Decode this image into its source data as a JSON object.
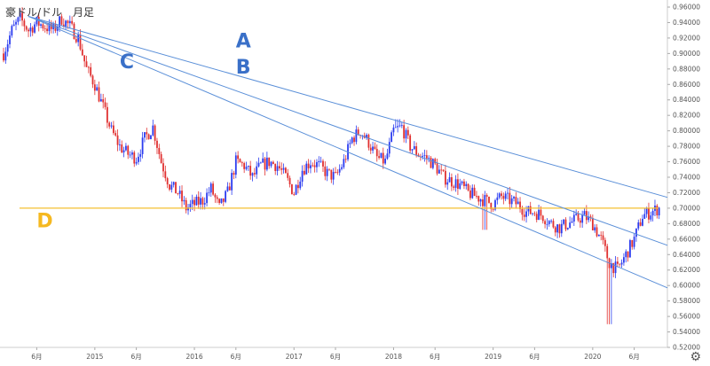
{
  "title": "豪ドル/ドル　月足",
  "colors": {
    "up": "#2b3cf0",
    "down": "#e03030",
    "trend": "#5a8fd8",
    "level": "#f4c030",
    "label_blue": "#3a70c8",
    "label_gold": "#f5b820",
    "grid": "#eeeeee"
  },
  "chart_data": {
    "type": "candlestick",
    "title": "豪ドル/ドル　月足",
    "ylim": [
      0.52,
      0.96
    ],
    "yticks": [
      "0.96000",
      "0.94000",
      "0.92000",
      "0.90000",
      "0.88000",
      "0.86000",
      "0.84000",
      "0.82000",
      "0.80000",
      "0.78000",
      "0.76000",
      "0.74000",
      "0.72000",
      "0.70000",
      "0.68000",
      "0.66000",
      "0.64000",
      "0.62000",
      "0.60000",
      "0.58000",
      "0.56000",
      "0.54000",
      "0.52000"
    ],
    "xticks": [
      {
        "label": "6月",
        "date": "2014-06"
      },
      {
        "label": "2015",
        "date": "2015-01"
      },
      {
        "label": "6月",
        "date": "2015-06"
      },
      {
        "label": "2016",
        "date": "2016-01"
      },
      {
        "label": "6月",
        "date": "2016-06"
      },
      {
        "label": "2017",
        "date": "2017-01"
      },
      {
        "label": "6月",
        "date": "2017-06"
      },
      {
        "label": "2018",
        "date": "2018-01"
      },
      {
        "label": "6月",
        "date": "2018-06"
      },
      {
        "label": "2019",
        "date": "2019-01"
      },
      {
        "label": "6月",
        "date": "2019-06"
      },
      {
        "label": "2020",
        "date": "2020-01"
      },
      {
        "label": "6月",
        "date": "2020-06"
      }
    ],
    "xrange": [
      "2014-02",
      "2020-10"
    ],
    "price_path": [
      [
        "2014-02",
        0.9
      ],
      [
        "2014-03",
        0.93
      ],
      [
        "2014-04",
        0.945
      ],
      [
        "2014-05",
        0.93
      ],
      [
        "2014-06",
        0.94
      ],
      [
        "2014-07",
        0.935
      ],
      [
        "2014-08",
        0.93
      ],
      [
        "2014-09",
        0.945
      ],
      [
        "2014-10",
        0.935
      ],
      [
        "2014-11",
        0.92
      ],
      [
        "2014-12",
        0.88
      ],
      [
        "2015-01",
        0.86
      ],
      [
        "2015-02",
        0.83
      ],
      [
        "2015-03",
        0.8
      ],
      [
        "2015-04",
        0.78
      ],
      [
        "2015-05",
        0.77
      ],
      [
        "2015-06",
        0.765
      ],
      [
        "2015-07",
        0.79
      ],
      [
        "2015-08",
        0.805
      ],
      [
        "2015-09",
        0.76
      ],
      [
        "2015-10",
        0.73
      ],
      [
        "2015-11",
        0.72
      ],
      [
        "2015-12",
        0.7
      ],
      [
        "2016-01",
        0.705
      ],
      [
        "2016-02",
        0.71
      ],
      [
        "2016-03",
        0.725
      ],
      [
        "2016-04",
        0.7
      ],
      [
        "2016-05",
        0.72
      ],
      [
        "2016-06",
        0.76
      ],
      [
        "2016-07",
        0.755
      ],
      [
        "2016-08",
        0.74
      ],
      [
        "2016-09",
        0.755
      ],
      [
        "2016-10",
        0.76
      ],
      [
        "2016-11",
        0.755
      ],
      [
        "2016-12",
        0.74
      ],
      [
        "2017-01",
        0.72
      ],
      [
        "2017-02",
        0.75
      ],
      [
        "2017-03",
        0.76
      ],
      [
        "2017-04",
        0.755
      ],
      [
        "2017-05",
        0.745
      ],
      [
        "2017-06",
        0.74
      ],
      [
        "2017-07",
        0.76
      ],
      [
        "2017-08",
        0.79
      ],
      [
        "2017-09",
        0.8
      ],
      [
        "2017-10",
        0.785
      ],
      [
        "2017-11",
        0.765
      ],
      [
        "2017-12",
        0.76
      ],
      [
        "2018-01",
        0.8
      ],
      [
        "2018-02",
        0.805
      ],
      [
        "2018-03",
        0.78
      ],
      [
        "2018-04",
        0.77
      ],
      [
        "2018-05",
        0.765
      ],
      [
        "2018-06",
        0.755
      ],
      [
        "2018-07",
        0.74
      ],
      [
        "2018-08",
        0.735
      ],
      [
        "2018-09",
        0.73
      ],
      [
        "2018-10",
        0.72
      ],
      [
        "2018-11",
        0.715
      ],
      [
        "2018-12",
        0.71
      ],
      [
        "2019-01",
        0.705
      ],
      [
        "2019-02",
        0.715
      ],
      [
        "2019-03",
        0.71
      ],
      [
        "2019-04",
        0.705
      ],
      [
        "2019-05",
        0.695
      ],
      [
        "2019-06",
        0.695
      ],
      [
        "2019-07",
        0.69
      ],
      [
        "2019-08",
        0.68
      ],
      [
        "2019-09",
        0.675
      ],
      [
        "2019-10",
        0.68
      ],
      [
        "2019-11",
        0.685
      ],
      [
        "2019-12",
        0.69
      ],
      [
        "2020-01",
        0.68
      ],
      [
        "2020-02",
        0.66
      ],
      [
        "2020-03",
        0.63
      ],
      [
        "2020-04",
        0.62
      ],
      [
        "2020-05",
        0.64
      ],
      [
        "2020-06",
        0.66
      ],
      [
        "2020-07",
        0.69
      ],
      [
        "2020-08",
        0.695
      ],
      [
        "2020-09",
        0.7
      ]
    ],
    "candle_resolution": "weekly",
    "annotations": [
      {
        "label": "A",
        "type": "trendline",
        "from": [
          "2014-05",
          0.948
        ],
        "to": [
          "2020-10",
          0.714
        ],
        "label_at": [
          "2016-06",
          0.908
        ]
      },
      {
        "label": "B",
        "type": "trendline",
        "from": [
          "2014-05",
          0.948
        ],
        "to": [
          "2020-10",
          0.652
        ],
        "label_at": [
          "2016-06",
          0.874
        ]
      },
      {
        "label": "C",
        "type": "trendline",
        "from": [
          "2014-05",
          0.948
        ],
        "to": [
          "2020-10",
          0.597
        ],
        "label_at": [
          "2015-04",
          0.881
        ]
      },
      {
        "label": "D",
        "type": "horizontal",
        "value": 0.7,
        "label_at": [
          "2014-06",
          0.675
        ]
      }
    ],
    "grid": false,
    "y_axis_position": "right"
  }
}
